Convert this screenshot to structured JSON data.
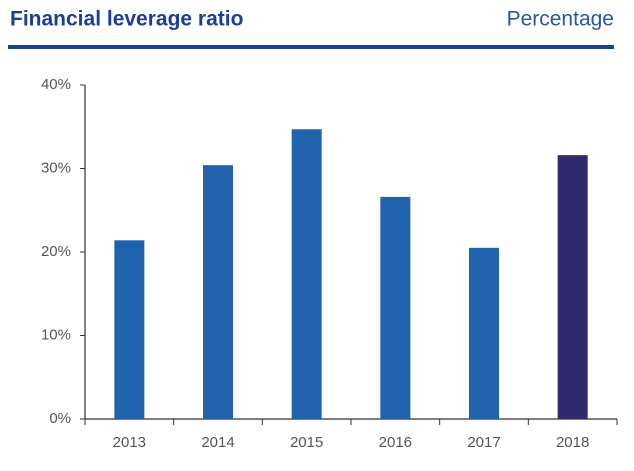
{
  "chart_data": {
    "type": "bar",
    "title": "Financial leverage ratio",
    "subtitle": "Percentage",
    "categories": [
      "2013",
      "2014",
      "2015",
      "2016",
      "2017",
      "2018"
    ],
    "values": [
      21.4,
      30.4,
      34.7,
      26.6,
      20.5,
      31.6
    ],
    "colors": [
      "#1f63ad",
      "#1f63ad",
      "#1f63ad",
      "#1f63ad",
      "#1f63ad",
      "#2f2a6e"
    ],
    "ylim": [
      0,
      40
    ],
    "yticks": [
      {
        "value": 0,
        "label": "0%"
      },
      {
        "value": 10,
        "label": "10%"
      },
      {
        "value": 20,
        "label": "20%"
      },
      {
        "value": 30,
        "label": "30%"
      },
      {
        "value": 40,
        "label": "40%"
      }
    ],
    "grid": false
  }
}
